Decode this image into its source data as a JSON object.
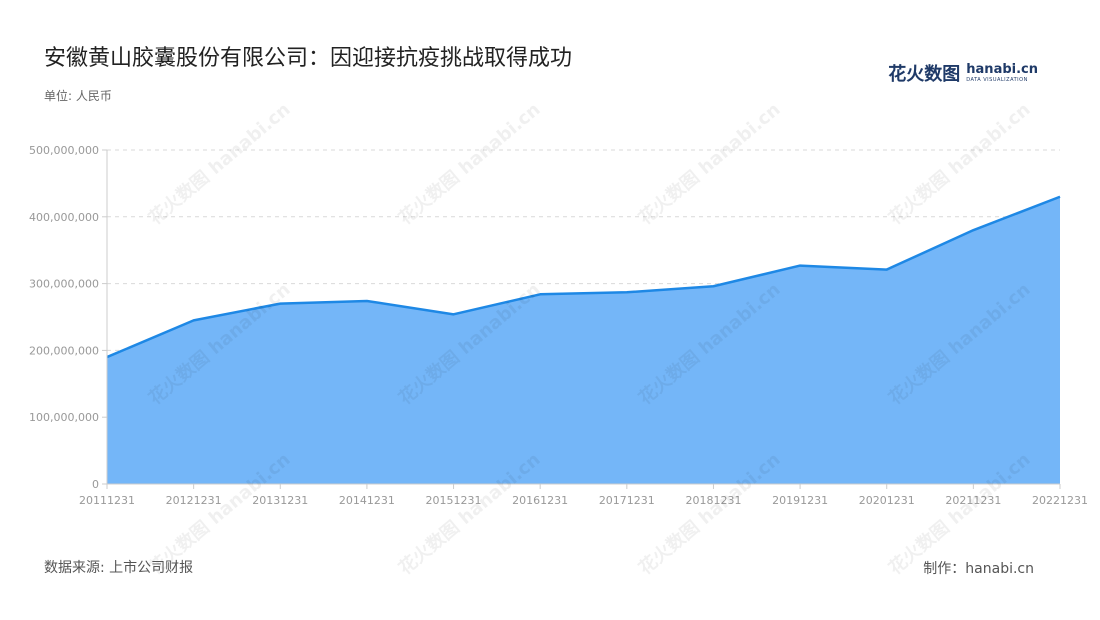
{
  "title": "安徽黄山胶囊股份有限公司：因迎接抗疫挑战取得成功",
  "unit_label": "单位: 人民币",
  "source": "数据来源: 上市公司财报",
  "credit": "制作：hanabi.cn",
  "logo": {
    "cn": "花火数图",
    "en": "hanabi.cn",
    "sub": "DATA VISUALIZATION"
  },
  "watermark_text": "花火数图 hanabi.cn",
  "colors": {
    "line": "#1e88e5",
    "fill": "#74b6f8",
    "grid": "#d9d9d9",
    "axis": "#cccccc"
  },
  "chart_data": {
    "type": "area",
    "x": [
      "20111231",
      "20121231",
      "20131231",
      "20141231",
      "20151231",
      "20161231",
      "20171231",
      "20181231",
      "20191231",
      "20201231",
      "20211231",
      "20221231"
    ],
    "series": [
      {
        "values": [
          190000000,
          245000000,
          270000000,
          274000000,
          254000000,
          284000000,
          287000000,
          296000000,
          327000000,
          321000000,
          380000000,
          430000000
        ]
      }
    ],
    "ylim": [
      0,
      500000000
    ],
    "yticks": [
      0,
      100000000,
      200000000,
      300000000,
      400000000,
      500000000
    ],
    "ytick_labels": [
      "0",
      "100,000,000",
      "200,000,000",
      "300,000,000",
      "400,000,000",
      "500,000,000"
    ],
    "grid": true,
    "legend": false
  }
}
